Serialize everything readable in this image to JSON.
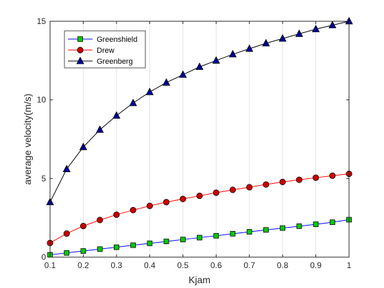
{
  "chart_data": {
    "type": "line",
    "title": "",
    "xlabel": "Kjam",
    "ylabel": "average velocity(m/s)",
    "xlim": [
      0.1,
      1
    ],
    "ylim": [
      0,
      15
    ],
    "xticks": [
      0.1,
      0.2,
      0.3,
      0.4,
      0.5,
      0.6,
      0.7,
      0.8,
      0.9,
      1
    ],
    "xtick_labels": [
      "0.1",
      "0.2",
      "0.3",
      "0.4",
      "0.5",
      "0.6",
      "0.7",
      "0.8",
      "0.9",
      "1"
    ],
    "yticks": [
      0,
      5,
      10,
      15
    ],
    "ytick_labels": [
      "0",
      "5",
      "10",
      "15"
    ],
    "grid": "vertical",
    "legend_position": "top-left",
    "x": [
      0.1,
      0.15,
      0.2,
      0.25,
      0.3,
      0.35,
      0.4,
      0.45,
      0.5,
      0.55,
      0.6,
      0.65,
      0.7,
      0.75,
      0.8,
      0.85,
      0.9,
      0.95,
      1.0
    ],
    "series": [
      {
        "name": "Greenshield",
        "line_color": "#0000ff",
        "marker": "square",
        "marker_fill": "#00cc00",
        "values": [
          0.15,
          0.27,
          0.39,
          0.51,
          0.63,
          0.76,
          0.88,
          1.0,
          1.12,
          1.24,
          1.36,
          1.49,
          1.61,
          1.73,
          1.85,
          1.97,
          2.09,
          2.22,
          2.38
        ]
      },
      {
        "name": "Drew",
        "line_color": "#ff0000",
        "marker": "circle",
        "marker_fill": "#cc0000",
        "values": [
          0.9,
          1.5,
          1.98,
          2.36,
          2.7,
          2.99,
          3.26,
          3.5,
          3.7,
          3.9,
          4.1,
          4.28,
          4.45,
          4.62,
          4.78,
          4.92,
          5.05,
          5.18,
          5.3
        ]
      },
      {
        "name": "Greenberg",
        "line_color": "#000000",
        "marker": "triangle",
        "marker_fill": "#000099",
        "values": [
          3.5,
          5.6,
          7.0,
          8.1,
          9.0,
          9.8,
          10.5,
          11.1,
          11.6,
          12.1,
          12.5,
          12.9,
          13.25,
          13.6,
          13.9,
          14.2,
          14.5,
          14.75,
          15.0
        ]
      }
    ]
  }
}
